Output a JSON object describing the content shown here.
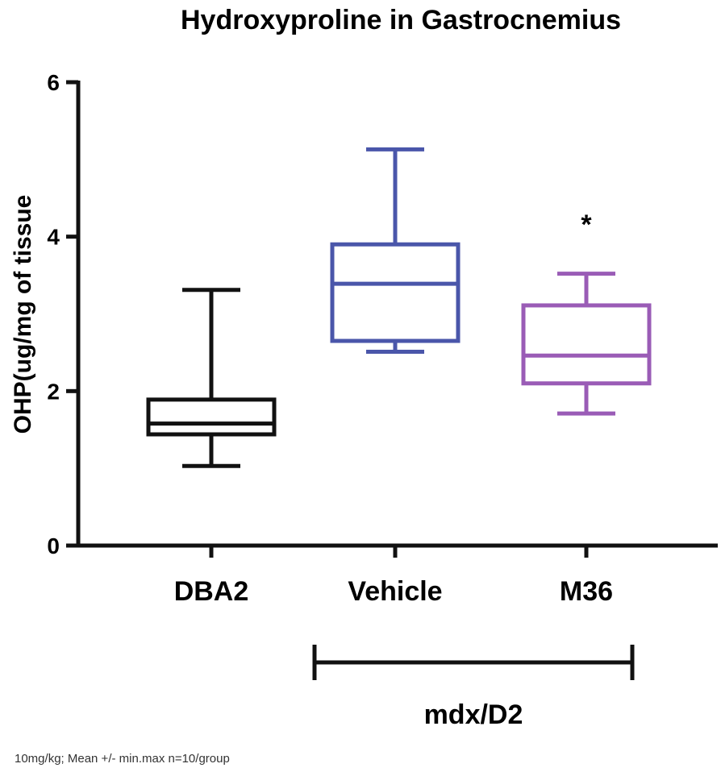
{
  "chart_data": {
    "type": "box",
    "title": "Hydroxyproline in Gastrocnemius",
    "xlabel": "",
    "ylabel": "OHP(ug/mg of tissue",
    "ylim": [
      0,
      6
    ],
    "yticks": [
      "0",
      "2",
      "4",
      "6"
    ],
    "categories": [
      "DBA2",
      "Vehicle",
      "M36"
    ],
    "series": [
      {
        "category": "DBA2",
        "min": 1.03,
        "q1": 1.44,
        "median": 1.58,
        "q3": 1.89,
        "max": 3.31,
        "color": "#111111"
      },
      {
        "category": "Vehicle",
        "min": 2.51,
        "q1": 2.65,
        "median": 3.39,
        "q3": 3.9,
        "max": 5.13,
        "color": "#4a56aa"
      },
      {
        "category": "M36",
        "min": 1.71,
        "q1": 2.1,
        "median": 2.46,
        "q3": 3.11,
        "max": 3.52,
        "color": "#9a5cb6"
      }
    ],
    "annotations": [
      {
        "category": "M36",
        "text": "*"
      }
    ],
    "group_bracket": {
      "label": "mdx/D2",
      "categories": [
        "Vehicle",
        "M36"
      ]
    },
    "footnote": "10mg/kg; Mean +/- min.max n=10/group",
    "grid": false,
    "legend": "none"
  }
}
